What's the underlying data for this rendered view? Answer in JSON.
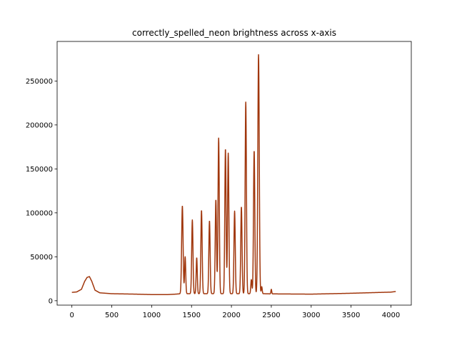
{
  "chart_data": {
    "type": "line",
    "title": "correctly_spelled_neon brightness across x-axis",
    "xlabel": "",
    "ylabel": "",
    "xlim": [
      -185,
      4255
    ],
    "ylim": [
      -5000,
      295000
    ],
    "x_ticks": [
      0,
      500,
      1000,
      1500,
      2000,
      2500,
      3000,
      3500,
      4000
    ],
    "y_ticks": [
      0,
      50000,
      100000,
      150000,
      200000,
      250000
    ],
    "grid": false,
    "legend": "none",
    "colors": {
      "line": "#a0360c",
      "axes": "#000000",
      "background": "#ffffff"
    },
    "series": [
      {
        "baseline": [
          [
            0,
            9500
          ],
          [
            60,
            10000
          ],
          [
            120,
            13000
          ],
          [
            160,
            22000
          ],
          [
            190,
            26500
          ],
          [
            220,
            27500
          ],
          [
            250,
            22000
          ],
          [
            290,
            12000
          ],
          [
            350,
            9000
          ],
          [
            500,
            8000
          ],
          [
            800,
            7500
          ],
          [
            1000,
            7000
          ],
          [
            1200,
            7000
          ],
          [
            1300,
            7500
          ],
          [
            1370,
            8000
          ],
          [
            2400,
            8000
          ],
          [
            2500,
            7800
          ],
          [
            3000,
            7500
          ],
          [
            3500,
            8500
          ],
          [
            4000,
            9800
          ],
          [
            4060,
            10500
          ]
        ],
        "peaks": [
          {
            "x": 1385,
            "y": 108000,
            "width": 9
          },
          {
            "x": 1420,
            "y": 50000,
            "width": 7
          },
          {
            "x": 1510,
            "y": 92000,
            "width": 8
          },
          {
            "x": 1565,
            "y": 49000,
            "width": 7
          },
          {
            "x": 1625,
            "y": 103000,
            "width": 8
          },
          {
            "x": 1725,
            "y": 91000,
            "width": 8
          },
          {
            "x": 1805,
            "y": 115000,
            "width": 8
          },
          {
            "x": 1840,
            "y": 185000,
            "width": 8
          },
          {
            "x": 1925,
            "y": 173000,
            "width": 8
          },
          {
            "x": 1960,
            "y": 168000,
            "width": 8
          },
          {
            "x": 2040,
            "y": 102000,
            "width": 8
          },
          {
            "x": 2125,
            "y": 107000,
            "width": 8
          },
          {
            "x": 2180,
            "y": 226000,
            "width": 8
          },
          {
            "x": 2250,
            "y": 24000,
            "width": 7
          },
          {
            "x": 2285,
            "y": 171000,
            "width": 8
          },
          {
            "x": 2340,
            "y": 280000,
            "width": 9
          },
          {
            "x": 2380,
            "y": 16000,
            "width": 6
          },
          {
            "x": 2500,
            "y": 13000,
            "width": 5
          }
        ]
      }
    ]
  }
}
